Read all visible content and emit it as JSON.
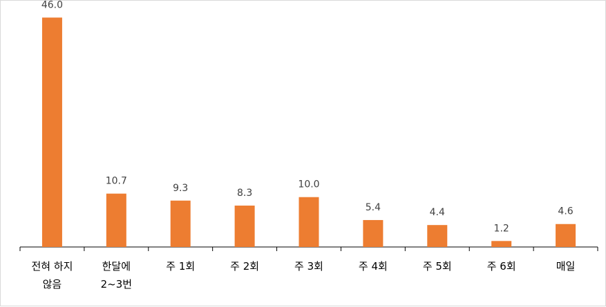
{
  "chart_data": {
    "type": "bar",
    "categories": [
      [
        "전혀 하지",
        "않음"
      ],
      [
        "한달에",
        "2~3번"
      ],
      [
        "주 1회"
      ],
      [
        "주 2회"
      ],
      [
        "주 3회"
      ],
      [
        "주 4회"
      ],
      [
        "주 5회"
      ],
      [
        "주 6회"
      ],
      [
        "매일"
      ]
    ],
    "values": [
      46.0,
      10.7,
      9.3,
      8.3,
      10.0,
      5.4,
      4.4,
      1.2,
      4.6
    ],
    "value_labels": [
      "46.0",
      "10.7",
      "9.3",
      "8.3",
      "10.0",
      "5.4",
      "4.4",
      "1.2",
      "4.6"
    ],
    "ylim": [
      0,
      48
    ],
    "grid": false,
    "bar_color": "#ED7D31",
    "axis_color": "#000000"
  }
}
